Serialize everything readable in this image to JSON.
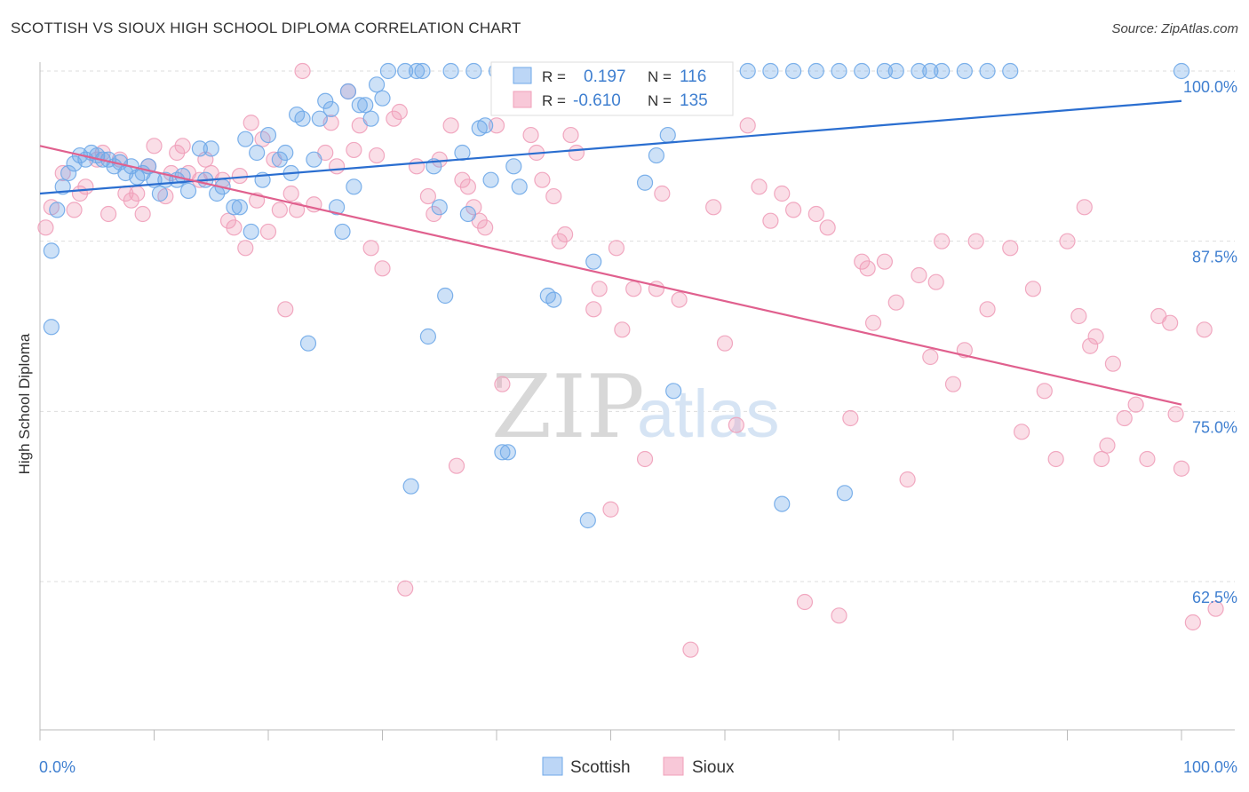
{
  "title": "SCOTTISH VS SIOUX HIGH SCHOOL DIPLOMA CORRELATION CHART",
  "source": "Source: ZipAtlas.com",
  "watermark": {
    "zip": "ZIP",
    "atlas": "atlas"
  },
  "colors": {
    "scottish": "#6fa8e8",
    "scottish_line": "#2a6ed0",
    "sioux": "#f0a0ba",
    "sioux_line": "#e0608e",
    "label_blue": "#3f7fd0",
    "grid": "#dddddd"
  },
  "chart_data": {
    "type": "scatter",
    "xlabel": "",
    "ylabel": "High School Diploma",
    "xlim": [
      0,
      100
    ],
    "ylim": [
      50,
      102
    ],
    "x_tick_labels": [
      "0.0%",
      "100.0%"
    ],
    "y_ticks": [
      62.5,
      75.0,
      87.5,
      100.0
    ],
    "y_tick_labels": [
      "62.5%",
      "75.0%",
      "87.5%",
      "100.0%"
    ],
    "grid": true,
    "legend": {
      "stats_position": "top-center",
      "bottom_position": "bottom-center",
      "r_label": "R =",
      "n_label": "N =",
      "entries": [
        {
          "name": "Scottish",
          "r": "0.197",
          "n": "116"
        },
        {
          "name": "Sioux",
          "r": "-0.610",
          "n": "135"
        }
      ]
    },
    "series": [
      {
        "name": "Scottish",
        "trend": {
          "x": [
            0,
            100
          ],
          "y": [
            91.0,
            97.8
          ]
        },
        "points": [
          [
            1,
            81.2
          ],
          [
            1,
            86.8
          ],
          [
            1.5,
            89.8
          ],
          [
            2,
            91.5
          ],
          [
            2.5,
            92.5
          ],
          [
            3,
            93.2
          ],
          [
            3.5,
            93.8
          ],
          [
            4,
            93.5
          ],
          [
            4.5,
            94.0
          ],
          [
            5,
            93.8
          ],
          [
            5.5,
            93.5
          ],
          [
            6,
            93.5
          ],
          [
            6.5,
            93.0
          ],
          [
            7,
            93.3
          ],
          [
            7.5,
            92.5
          ],
          [
            8,
            93.0
          ],
          [
            8.5,
            92.2
          ],
          [
            9,
            92.5
          ],
          [
            9.5,
            93.0
          ],
          [
            10,
            92.0
          ],
          [
            10.5,
            91.0
          ],
          [
            11,
            92.0
          ],
          [
            12,
            92.0
          ],
          [
            12.5,
            92.3
          ],
          [
            13,
            91.2
          ],
          [
            14,
            94.3
          ],
          [
            14.5,
            92.0
          ],
          [
            15,
            94.3
          ],
          [
            15.5,
            91.0
          ],
          [
            16,
            91.5
          ],
          [
            17,
            90.0
          ],
          [
            17.5,
            90.0
          ],
          [
            18,
            95.0
          ],
          [
            18.5,
            88.2
          ],
          [
            19,
            94.0
          ],
          [
            19.5,
            92.0
          ],
          [
            20,
            95.3
          ],
          [
            21,
            93.5
          ],
          [
            21.5,
            94.0
          ],
          [
            22,
            92.5
          ],
          [
            22.5,
            96.8
          ],
          [
            23,
            96.5
          ],
          [
            23.5,
            80.0
          ],
          [
            24,
            93.5
          ],
          [
            24.5,
            96.5
          ],
          [
            25,
            97.8
          ],
          [
            25.5,
            97.2
          ],
          [
            26,
            90.0
          ],
          [
            26.5,
            88.2
          ],
          [
            27,
            98.5
          ],
          [
            27.5,
            91.5
          ],
          [
            28,
            97.5
          ],
          [
            28.5,
            97.5
          ],
          [
            29,
            96.5
          ],
          [
            29.5,
            99.0
          ],
          [
            30,
            98.0
          ],
          [
            30.5,
            100
          ],
          [
            32,
            100
          ],
          [
            32.5,
            69.5
          ],
          [
            33,
            100
          ],
          [
            33.5,
            100
          ],
          [
            34,
            80.5
          ],
          [
            34.5,
            93.0
          ],
          [
            35,
            90.0
          ],
          [
            35.5,
            83.5
          ],
          [
            36,
            100
          ],
          [
            37,
            94.0
          ],
          [
            37.5,
            89.5
          ],
          [
            38,
            100
          ],
          [
            38.5,
            95.8
          ],
          [
            39,
            96.0
          ],
          [
            39.5,
            92.0
          ],
          [
            40,
            100
          ],
          [
            40.5,
            72.0
          ],
          [
            41,
            72.0
          ],
          [
            41.5,
            93.0
          ],
          [
            42,
            91.5
          ],
          [
            43,
            100
          ],
          [
            44,
            100
          ],
          [
            44.5,
            83.5
          ],
          [
            45,
            83.2
          ],
          [
            46,
            100
          ],
          [
            46.5,
            100
          ],
          [
            47,
            100
          ],
          [
            48,
            67.0
          ],
          [
            48.5,
            86.0
          ],
          [
            49,
            100
          ],
          [
            50,
            100
          ],
          [
            50.5,
            100
          ],
          [
            51,
            100
          ],
          [
            52,
            100
          ],
          [
            53,
            91.8
          ],
          [
            54,
            93.8
          ],
          [
            55,
            95.3
          ],
          [
            55.5,
            76.5
          ],
          [
            57,
            100
          ],
          [
            58,
            100
          ],
          [
            60,
            100
          ],
          [
            62,
            100
          ],
          [
            64,
            100
          ],
          [
            65,
            68.2
          ],
          [
            66,
            100
          ],
          [
            68,
            100
          ],
          [
            70,
            100
          ],
          [
            70.5,
            69.0
          ],
          [
            72,
            100
          ],
          [
            74,
            100
          ],
          [
            75,
            100
          ],
          [
            77,
            100
          ],
          [
            78,
            100
          ],
          [
            79,
            100
          ],
          [
            81,
            100
          ],
          [
            83,
            100
          ],
          [
            85,
            100
          ],
          [
            100,
            100
          ]
        ]
      },
      {
        "name": "Sioux",
        "trend": {
          "x": [
            0,
            100
          ],
          "y": [
            94.5,
            75.5
          ]
        },
        "points": [
          [
            0.5,
            88.5
          ],
          [
            1,
            90.0
          ],
          [
            2,
            92.5
          ],
          [
            3,
            89.8
          ],
          [
            3.5,
            91.0
          ],
          [
            4,
            91.5
          ],
          [
            5,
            93.5
          ],
          [
            5.5,
            94.0
          ],
          [
            6,
            89.5
          ],
          [
            7,
            93.5
          ],
          [
            7.5,
            91.0
          ],
          [
            8,
            90.5
          ],
          [
            8.5,
            91.0
          ],
          [
            9,
            89.5
          ],
          [
            9.5,
            93.0
          ],
          [
            10,
            94.5
          ],
          [
            11,
            90.8
          ],
          [
            11.5,
            92.5
          ],
          [
            12,
            94.0
          ],
          [
            12.5,
            94.5
          ],
          [
            13,
            92.5
          ],
          [
            14,
            92.0
          ],
          [
            14.5,
            93.5
          ],
          [
            15,
            92.5
          ],
          [
            16,
            92.0
          ],
          [
            16.5,
            89.0
          ],
          [
            17,
            88.5
          ],
          [
            17.5,
            92.3
          ],
          [
            18,
            87.0
          ],
          [
            18.5,
            96.2
          ],
          [
            19,
            90.5
          ],
          [
            19.5,
            95.0
          ],
          [
            20,
            88.2
          ],
          [
            20.5,
            93.5
          ],
          [
            21,
            89.8
          ],
          [
            21.5,
            82.5
          ],
          [
            22,
            91.0
          ],
          [
            22.5,
            89.8
          ],
          [
            23,
            100
          ],
          [
            24,
            90.2
          ],
          [
            25,
            94.0
          ],
          [
            25.5,
            96.2
          ],
          [
            26,
            93.0
          ],
          [
            27,
            98.5
          ],
          [
            27.5,
            94.2
          ],
          [
            28,
            96.0
          ],
          [
            29,
            87.0
          ],
          [
            29.5,
            93.8
          ],
          [
            30,
            85.5
          ],
          [
            31,
            96.5
          ],
          [
            31.5,
            97.0
          ],
          [
            32,
            62.0
          ],
          [
            33,
            93.0
          ],
          [
            34,
            90.8
          ],
          [
            34.5,
            89.5
          ],
          [
            35,
            93.5
          ],
          [
            36,
            96.0
          ],
          [
            36.5,
            71.0
          ],
          [
            37,
            92.0
          ],
          [
            37.5,
            91.5
          ],
          [
            38,
            90.0
          ],
          [
            38.5,
            89.0
          ],
          [
            39,
            88.5
          ],
          [
            40,
            96.0
          ],
          [
            40.5,
            77.0
          ],
          [
            41,
            100
          ],
          [
            43,
            95.3
          ],
          [
            43.5,
            94.0
          ],
          [
            44,
            92.0
          ],
          [
            45,
            90.8
          ],
          [
            45.5,
            87.5
          ],
          [
            46,
            88.0
          ],
          [
            46.5,
            95.3
          ],
          [
            47,
            94.0
          ],
          [
            48,
            100
          ],
          [
            48.5,
            82.5
          ],
          [
            49,
            84.0
          ],
          [
            50,
            67.8
          ],
          [
            50.5,
            87.0
          ],
          [
            51,
            81.0
          ],
          [
            52,
            84.0
          ],
          [
            53,
            71.5
          ],
          [
            54,
            84.0
          ],
          [
            54.5,
            91.0
          ],
          [
            55,
            100
          ],
          [
            56,
            83.2
          ],
          [
            57,
            57.5
          ],
          [
            58,
            100
          ],
          [
            59,
            90.0
          ],
          [
            60,
            80.0
          ],
          [
            61,
            74.0
          ],
          [
            62,
            96.0
          ],
          [
            63,
            91.5
          ],
          [
            64,
            89.0
          ],
          [
            65,
            91.0
          ],
          [
            66,
            89.8
          ],
          [
            67,
            61.0
          ],
          [
            68,
            89.5
          ],
          [
            69,
            88.5
          ],
          [
            70,
            60.0
          ],
          [
            71,
            74.5
          ],
          [
            72,
            86.0
          ],
          [
            72.5,
            85.5
          ],
          [
            73,
            81.5
          ],
          [
            74,
            86.0
          ],
          [
            75,
            83.0
          ],
          [
            76,
            70.0
          ],
          [
            77,
            85.0
          ],
          [
            78,
            79.0
          ],
          [
            78.5,
            84.5
          ],
          [
            79,
            87.5
          ],
          [
            80,
            77.0
          ],
          [
            81,
            79.5
          ],
          [
            82,
            87.5
          ],
          [
            83,
            82.5
          ],
          [
            85,
            87.0
          ],
          [
            86,
            73.5
          ],
          [
            87,
            84.0
          ],
          [
            88,
            76.5
          ],
          [
            89,
            71.5
          ],
          [
            90,
            87.5
          ],
          [
            91,
            82.0
          ],
          [
            91.5,
            90.0
          ],
          [
            92,
            79.8
          ],
          [
            92.5,
            80.5
          ],
          [
            93,
            71.5
          ],
          [
            93.5,
            72.5
          ],
          [
            94,
            78.5
          ],
          [
            95,
            74.5
          ],
          [
            96,
            75.5
          ],
          [
            97,
            71.5
          ],
          [
            98,
            82.0
          ],
          [
            99,
            81.5
          ],
          [
            99.5,
            74.8
          ],
          [
            100,
            70.8
          ],
          [
            101,
            59.5
          ],
          [
            102,
            81.0
          ],
          [
            103,
            60.5
          ]
        ]
      }
    ]
  }
}
